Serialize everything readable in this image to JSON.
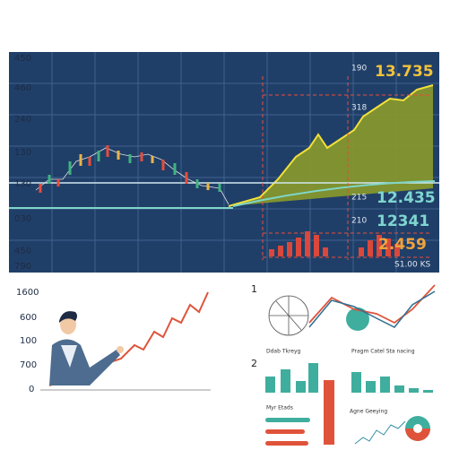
{
  "top_panel": {
    "left_labels": [
      "450",
      "460",
      "240",
      "130",
      "130",
      "030",
      "450",
      "790"
    ],
    "right_small_labels": [
      "190",
      "318",
      "215",
      "210"
    ],
    "right_values": [
      "13.735",
      "12.435",
      "12341",
      "2.459"
    ],
    "footer": "S1.00 KS"
  },
  "bottom_left": {
    "axis_labels": [
      "1600",
      "600",
      "100",
      "700",
      "0"
    ]
  },
  "bottom_right": {
    "step_labels": [
      "1",
      "2"
    ],
    "captions": [
      "Ddab Tkreyg",
      "Pragm Catel Sta nacing",
      "Myr Etads",
      "Agne Geeying"
    ]
  }
}
